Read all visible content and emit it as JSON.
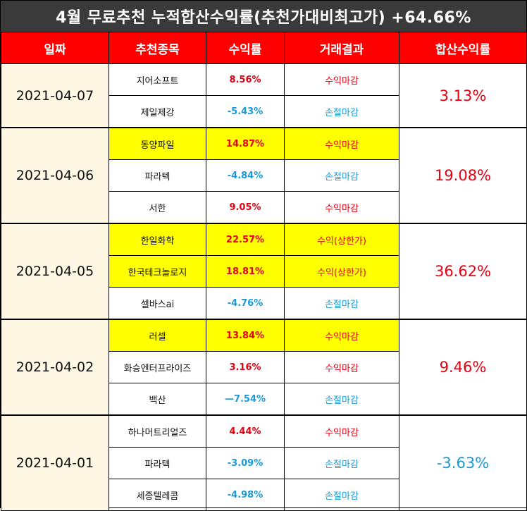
{
  "title": "4월 무료추천 누적합산수익률(추천가대비최고가) +64.66%",
  "headers": [
    "일짜",
    "추천종목",
    "수익률",
    "거래결과",
    "합산수익률"
  ],
  "colors": {
    "header_bg": "#ff0000",
    "title_bg": "#3a3a3a",
    "highlight": "#ffff00",
    "gain": "#e60012",
    "loss": "#1a9ad6",
    "date_bg": "#fdf7e3"
  },
  "groups": [
    {
      "date": "2021-04-07",
      "total": "3.13%",
      "rows": [
        {
          "name": "지어소프트",
          "rate": "8.56%",
          "result": "수익마감"
        },
        {
          "name": "제일제강",
          "rate": "-5.43%",
          "result": "손절마감"
        }
      ]
    },
    {
      "date": "2021-04-06",
      "total": "19.08%",
      "rows": [
        {
          "name": "동양파일",
          "rate": "14.87%",
          "result": "수익마감"
        },
        {
          "name": "파라텍",
          "rate": "-4.84%",
          "result": "손절마감"
        },
        {
          "name": "서한",
          "rate": "9.05%",
          "result": "수익마감"
        }
      ]
    },
    {
      "date": "2021-04-05",
      "total": "36.62%",
      "rows": [
        {
          "name": "한일화학",
          "rate": "22.57%",
          "result": "수익(상한가)"
        },
        {
          "name": "한국테크놀로지",
          "rate": "18.81%",
          "result": "수익(상한가)"
        },
        {
          "name": "셀바스ai",
          "rate": "-4.76%",
          "result": "손절마감"
        }
      ]
    },
    {
      "date": "2021-04-02",
      "total": "9.46%",
      "rows": [
        {
          "name": "러셀",
          "rate": "13.84%",
          "result": "수익마감"
        },
        {
          "name": "화승엔터프라이즈",
          "rate": "3.16%",
          "result": "수익마감"
        },
        {
          "name": "백산",
          "rate": "—7.54%",
          "result": "손절마감"
        }
      ]
    },
    {
      "date": "2021-04-01",
      "total": "-3.63%",
      "rows": [
        {
          "name": "하나머트리얼즈",
          "rate": "4.44%",
          "result": "수익마감"
        },
        {
          "name": "파라텍",
          "rate": "-3.09%",
          "result": "손절마감"
        },
        {
          "name": "세종텔레콤",
          "rate": "-4.98%",
          "result": "손절마감"
        }
      ]
    }
  ]
}
